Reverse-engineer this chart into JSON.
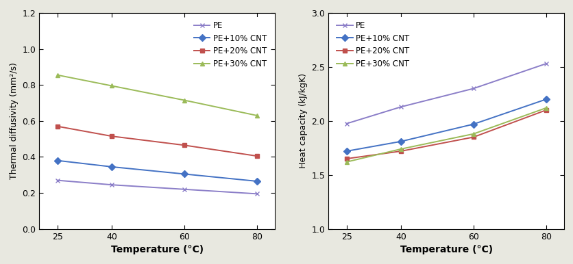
{
  "temperature": [
    25,
    40,
    60,
    80
  ],
  "thermal_diffusivity": {
    "PE": [
      0.27,
      0.245,
      0.22,
      0.195
    ],
    "PE+10% CNT": [
      0.38,
      0.345,
      0.305,
      0.265
    ],
    "PE+20% CNT": [
      0.57,
      0.515,
      0.465,
      0.405
    ],
    "PE+30% CNT": [
      0.855,
      0.795,
      0.715,
      0.63
    ]
  },
  "heat_capacity": {
    "PE": [
      1.975,
      2.13,
      2.3,
      2.53
    ],
    "PE+10% CNT": [
      1.72,
      1.81,
      1.97,
      2.2
    ],
    "PE+20% CNT": [
      1.65,
      1.72,
      1.85,
      2.1
    ],
    "PE+30% CNT": [
      1.62,
      1.74,
      1.88,
      2.12
    ]
  },
  "colors": {
    "PE": "#8B7EC8",
    "PE+10% CNT": "#4472C4",
    "PE+20% CNT": "#C0504D",
    "PE+30% CNT": "#9BBB59"
  },
  "markers": {
    "PE": "x",
    "PE+10% CNT": "D",
    "PE+20% CNT": "s",
    "PE+30% CNT": "^"
  },
  "xlabel": "Temperature (°C)",
  "ylabel_left": "Thermal diffusivity (mm²/s)",
  "ylabel_right": "Heat capacity (kJ/kgK)",
  "ylim_left": [
    0.0,
    1.2
  ],
  "ylim_right": [
    1.0,
    3.0
  ],
  "yticks_left": [
    0.0,
    0.2,
    0.4,
    0.6,
    0.8,
    1.0,
    1.2
  ],
  "yticks_right": [
    1.0,
    1.5,
    2.0,
    2.5,
    3.0
  ],
  "xticks": [
    25,
    40,
    60,
    80
  ],
  "xlim": [
    20,
    85
  ],
  "bg_color": "#E8E8E0",
  "axes_bg": "#FFFFFF"
}
